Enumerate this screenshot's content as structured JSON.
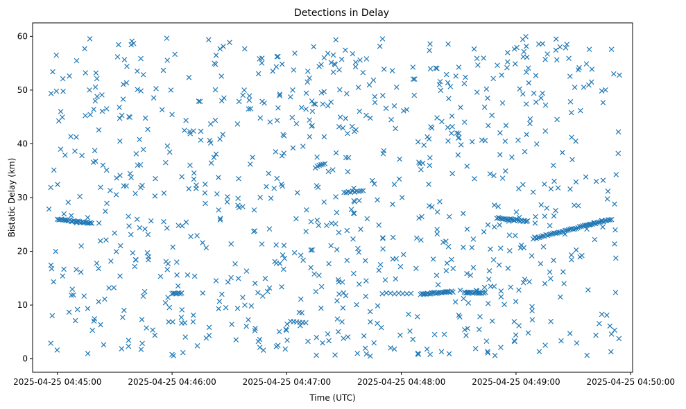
{
  "chart_data": {
    "type": "scatter",
    "title": "Detections in Delay",
    "xlabel": "Time (UTC)",
    "ylabel": "Bistatic Delay (km)",
    "x_tick_labels": [
      "2025-04-25 04:45:00",
      "2025-04-25 04:46:00",
      "2025-04-25 04:47:00",
      "2025-04-25 04:48:00",
      "2025-04-25 04:49:00",
      "2025-04-25 04:50:00"
    ],
    "y_tick_labels": [
      "0",
      "10",
      "20",
      "30",
      "40",
      "50",
      "60"
    ],
    "xlim": [
      "2025-04-25 04:44:47",
      "2025-04-25 04:50:01"
    ],
    "ylim": [
      -2.5,
      62.5
    ],
    "grid": false,
    "marker": "x",
    "color": "#1f77b4",
    "series": [
      {
        "tracks": [
          {
            "x0": "2025-04-25 04:45:00",
            "y0": 26.0,
            "x1": "2025-04-25 04:45:18",
            "y1": 25.2,
            "n": 26
          },
          {
            "x0": "2025-04-25 04:48:10",
            "y0": 12.0,
            "x1": "2025-04-25 04:48:27",
            "y1": 12.5,
            "n": 24
          },
          {
            "x0": "2025-04-25 04:48:33",
            "y0": 12.3,
            "x1": "2025-04-25 04:48:44",
            "y1": 12.3,
            "n": 16
          },
          {
            "x0": "2025-04-25 04:48:50",
            "y0": 26.2,
            "x1": "2025-04-25 04:49:06",
            "y1": 25.6,
            "n": 22
          },
          {
            "x0": "2025-04-25 04:49:09",
            "y0": 22.4,
            "x1": "2025-04-25 04:49:50",
            "y1": 25.9,
            "n": 50
          },
          {
            "x0": "2025-04-25 04:46:00",
            "y0": 12.2,
            "x1": "2025-04-25 04:46:05",
            "y1": 12.2,
            "n": 8
          },
          {
            "x0": "2025-04-25 04:47:30",
            "y0": 31.0,
            "x1": "2025-04-25 04:47:40",
            "y1": 31.2,
            "n": 10
          },
          {
            "x0": "2025-04-25 04:47:50",
            "y0": 12.2,
            "x1": "2025-04-25 04:48:05",
            "y1": 12.2,
            "n": 8
          },
          {
            "x0": "2025-04-25 04:47:15",
            "y0": 35.6,
            "x1": "2025-04-25 04:47:20",
            "y1": 36.3,
            "n": 6
          },
          {
            "x0": "2025-04-25 04:47:02",
            "y0": 7.0,
            "x1": "2025-04-25 04:47:10",
            "y1": 6.6,
            "n": 6
          }
        ],
        "scatter_x_range": [
          "2025-04-25 04:44:55",
          "2025-04-25 04:49:55"
        ],
        "scatter_y_range": [
          0.5,
          60
        ],
        "scatter_count": 880
      }
    ]
  }
}
